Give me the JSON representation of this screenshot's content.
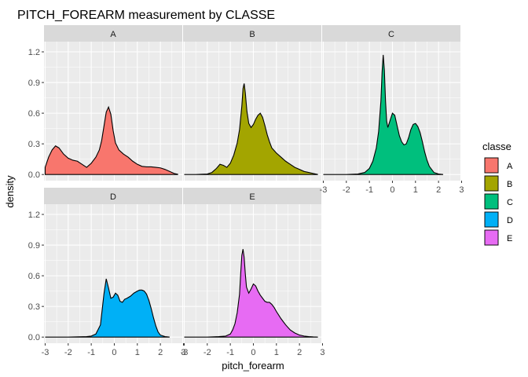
{
  "chart_data": {
    "type": "area",
    "title": "PITCH_FOREARM measurement by CLASSE",
    "xlabel": "pitch_forearm",
    "ylabel": "density",
    "xlim": [
      -3.05,
      2.95
    ],
    "ylim": [
      -0.06,
      1.3
    ],
    "x_ticks": [
      -3,
      -2,
      -1,
      0,
      1,
      2,
      3
    ],
    "y_ticks": [
      0.0,
      0.3,
      0.6,
      0.9,
      1.2
    ],
    "x_tick_labels": [
      "-3",
      "-2",
      "-1",
      "0",
      "1",
      "2",
      "3"
    ],
    "y_tick_labels": [
      "0.0",
      "0.3",
      "0.6",
      "0.9",
      "1.2"
    ],
    "grid": true,
    "legend": {
      "title": "classe",
      "position": "right"
    },
    "facets": [
      {
        "label": "A",
        "color": "#F8766D",
        "x": [
          -3.0,
          -2.85,
          -2.7,
          -2.55,
          -2.4,
          -2.2,
          -2.0,
          -1.8,
          -1.6,
          -1.4,
          -1.2,
          -1.0,
          -0.8,
          -0.65,
          -0.55,
          -0.45,
          -0.35,
          -0.25,
          -0.15,
          -0.05,
          0.05,
          0.2,
          0.4,
          0.6,
          0.8,
          1.0,
          1.2,
          1.4,
          1.6,
          1.8,
          2.0,
          2.2,
          2.4,
          2.6,
          2.75
        ],
        "y": [
          0.07,
          0.17,
          0.24,
          0.28,
          0.26,
          0.2,
          0.16,
          0.14,
          0.13,
          0.1,
          0.07,
          0.11,
          0.17,
          0.24,
          0.33,
          0.47,
          0.61,
          0.66,
          0.59,
          0.43,
          0.31,
          0.24,
          0.2,
          0.17,
          0.13,
          0.1,
          0.08,
          0.075,
          0.075,
          0.07,
          0.065,
          0.05,
          0.03,
          0.01,
          0.003
        ]
      },
      {
        "label": "B",
        "color": "#A3A500",
        "x": [
          -3.0,
          -2.5,
          -2.0,
          -1.8,
          -1.6,
          -1.45,
          -1.3,
          -1.15,
          -1.0,
          -0.85,
          -0.7,
          -0.6,
          -0.5,
          -0.45,
          -0.4,
          -0.35,
          -0.28,
          -0.2,
          -0.1,
          0.0,
          0.1,
          0.2,
          0.3,
          0.4,
          0.5,
          0.6,
          0.7,
          0.8,
          1.0,
          1.2,
          1.4,
          1.6,
          1.8,
          2.0,
          2.2,
          2.4,
          2.6,
          2.8
        ],
        "y": [
          0.0,
          0.0,
          0.005,
          0.02,
          0.06,
          0.1,
          0.09,
          0.07,
          0.11,
          0.19,
          0.31,
          0.44,
          0.67,
          0.84,
          0.89,
          0.8,
          0.62,
          0.5,
          0.46,
          0.49,
          0.54,
          0.58,
          0.6,
          0.56,
          0.48,
          0.39,
          0.32,
          0.26,
          0.21,
          0.17,
          0.13,
          0.1,
          0.07,
          0.05,
          0.03,
          0.02,
          0.01,
          0.0
        ]
      },
      {
        "label": "C",
        "color": "#00BF7D",
        "x": [
          -3.0,
          -2.0,
          -1.5,
          -1.2,
          -1.0,
          -0.85,
          -0.7,
          -0.6,
          -0.5,
          -0.45,
          -0.4,
          -0.35,
          -0.3,
          -0.25,
          -0.2,
          -0.1,
          0.0,
          0.1,
          0.2,
          0.3,
          0.4,
          0.5,
          0.6,
          0.7,
          0.8,
          0.9,
          1.0,
          1.1,
          1.2,
          1.3,
          1.4,
          1.5,
          1.6,
          1.8,
          2.0,
          2.2
        ],
        "y": [
          0.0,
          0.0,
          0.005,
          0.02,
          0.06,
          0.13,
          0.26,
          0.42,
          0.72,
          1.0,
          1.17,
          1.02,
          0.72,
          0.52,
          0.46,
          0.53,
          0.6,
          0.58,
          0.48,
          0.38,
          0.32,
          0.29,
          0.3,
          0.36,
          0.44,
          0.49,
          0.5,
          0.47,
          0.41,
          0.32,
          0.22,
          0.14,
          0.08,
          0.02,
          0.005,
          0.0
        ]
      },
      {
        "label": "D",
        "color": "#00B0F6",
        "x": [
          -3.0,
          -2.0,
          -1.2,
          -1.0,
          -0.8,
          -0.6,
          -0.45,
          -0.35,
          -0.25,
          -0.15,
          -0.05,
          0.05,
          0.15,
          0.25,
          0.35,
          0.45,
          0.55,
          0.7,
          0.85,
          1.0,
          1.1,
          1.2,
          1.3,
          1.4,
          1.5,
          1.6,
          1.7,
          1.8,
          1.9,
          2.0,
          2.2,
          2.4
        ],
        "y": [
          0.0,
          0.0,
          0.005,
          0.01,
          0.03,
          0.12,
          0.42,
          0.57,
          0.48,
          0.38,
          0.39,
          0.43,
          0.41,
          0.35,
          0.34,
          0.37,
          0.38,
          0.4,
          0.43,
          0.45,
          0.46,
          0.46,
          0.45,
          0.42,
          0.36,
          0.28,
          0.19,
          0.11,
          0.05,
          0.02,
          0.005,
          0.0
        ]
      },
      {
        "label": "E",
        "color": "#E76BF3",
        "x": [
          -3.0,
          -2.0,
          -1.5,
          -1.2,
          -1.0,
          -0.9,
          -0.8,
          -0.7,
          -0.6,
          -0.55,
          -0.5,
          -0.45,
          -0.4,
          -0.35,
          -0.3,
          -0.2,
          -0.1,
          0.0,
          0.1,
          0.2,
          0.3,
          0.4,
          0.5,
          0.6,
          0.7,
          0.8,
          0.9,
          1.0,
          1.2,
          1.4,
          1.6,
          1.8,
          2.0,
          2.2,
          2.4,
          2.6,
          2.8
        ],
        "y": [
          0.0,
          0.0,
          0.005,
          0.01,
          0.03,
          0.07,
          0.13,
          0.24,
          0.42,
          0.62,
          0.8,
          0.86,
          0.78,
          0.62,
          0.49,
          0.43,
          0.47,
          0.52,
          0.5,
          0.45,
          0.41,
          0.38,
          0.35,
          0.34,
          0.34,
          0.32,
          0.29,
          0.25,
          0.18,
          0.12,
          0.07,
          0.04,
          0.02,
          0.01,
          0.005,
          0.002,
          0.0
        ]
      }
    ]
  }
}
